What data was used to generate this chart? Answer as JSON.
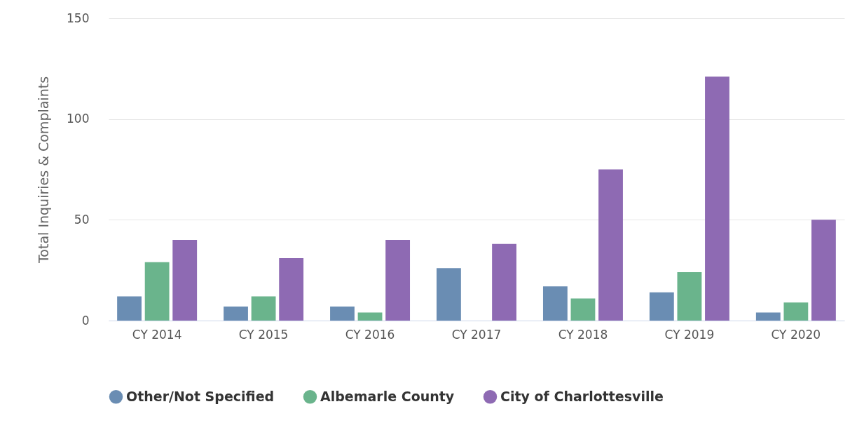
{
  "chart_data": {
    "type": "bar",
    "ylabel": "Total Inquiries & Complaints",
    "categories": [
      "CY 2014",
      "CY 2015",
      "CY 2016",
      "CY 2017",
      "CY 2018",
      "CY 2019",
      "CY 2020"
    ],
    "series": [
      {
        "name": "Other/Not Specified",
        "color": "#6a8db3",
        "values": [
          12,
          7,
          7,
          26,
          17,
          14,
          4
        ]
      },
      {
        "name": "Albemarle County",
        "color": "#6ab48c",
        "values": [
          29,
          12,
          4,
          null,
          11,
          24,
          9
        ]
      },
      {
        "name": "City of Charlottesville",
        "color": "#8e6ab3",
        "values": [
          40,
          31,
          40,
          38,
          75,
          121,
          50
        ]
      }
    ],
    "ylim": [
      0,
      150
    ],
    "yticks": [
      0,
      50,
      100,
      150
    ],
    "grid": "y",
    "legend": "bottom"
  }
}
